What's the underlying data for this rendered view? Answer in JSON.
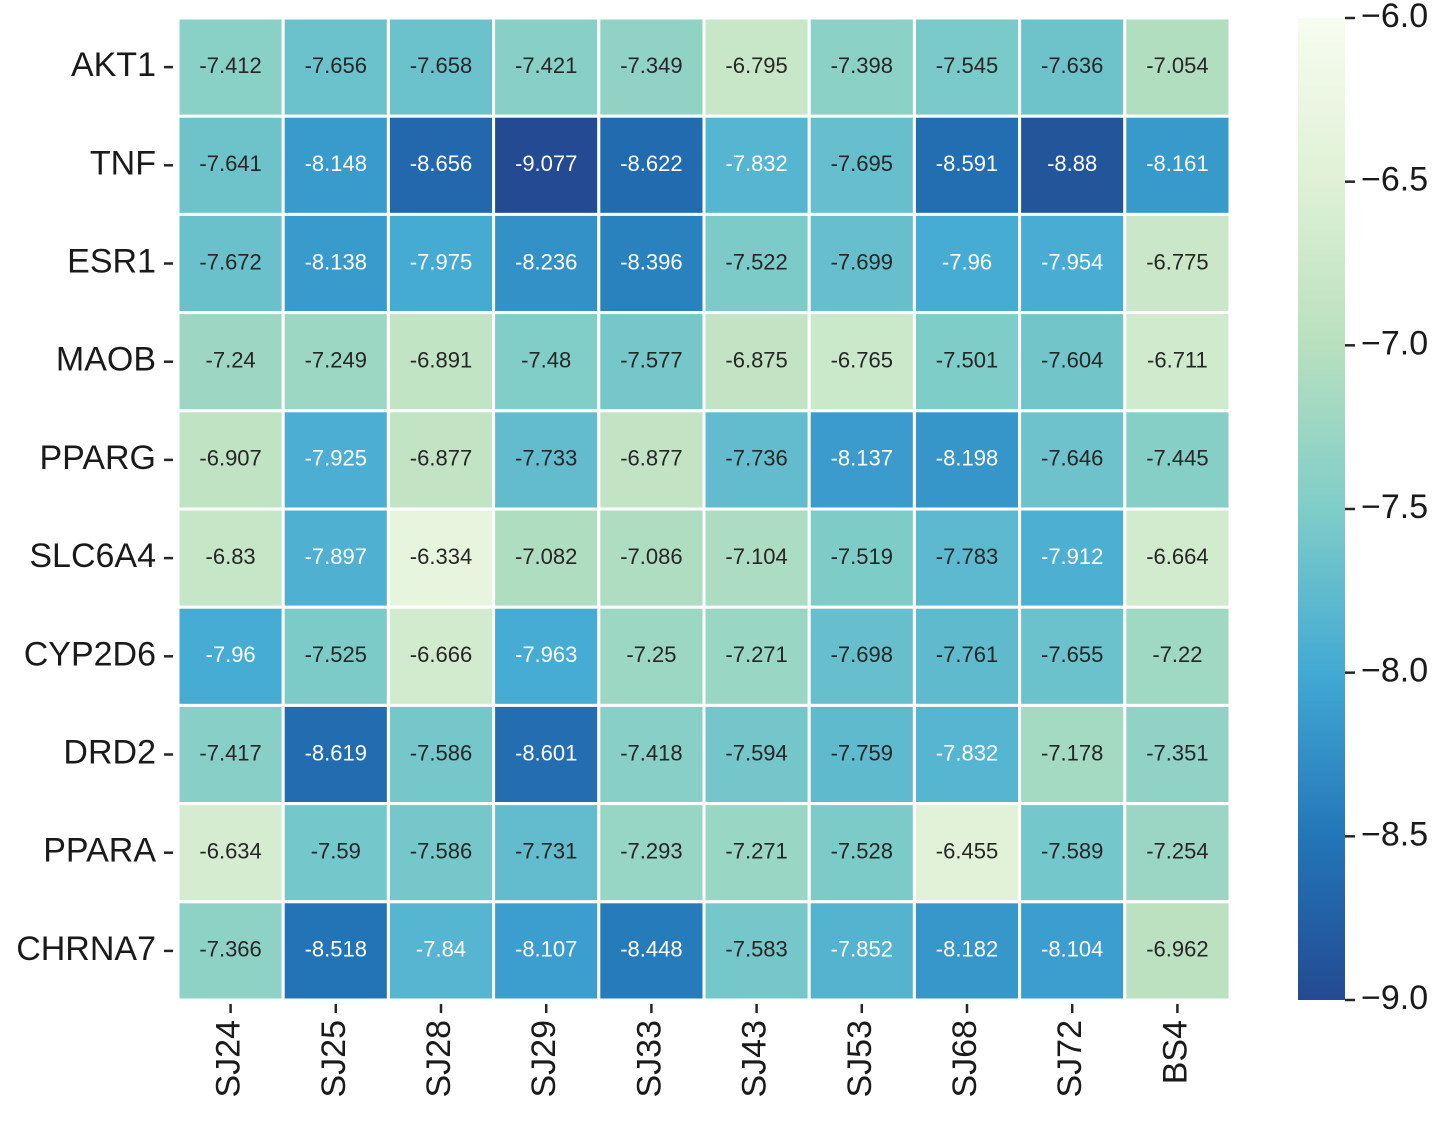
{
  "chart_data": {
    "type": "heatmap",
    "x": [
      "SJ24",
      "SJ25",
      "SJ28",
      "SJ29",
      "SJ33",
      "SJ43",
      "SJ53",
      "SJ68",
      "SJ72",
      "BS4"
    ],
    "y": [
      "AKT1",
      "TNF",
      "ESR1",
      "MAOB",
      "PPARG",
      "SLC6A4",
      "CYP2D6",
      "DRD2",
      "PPARA",
      "CHRNA7"
    ],
    "values": [
      [
        -7.412,
        -7.656,
        -7.658,
        -7.421,
        -7.349,
        -6.795,
        -7.398,
        -7.545,
        -7.636,
        -7.054
      ],
      [
        -7.641,
        -8.148,
        -8.656,
        -9.077,
        -8.622,
        -7.832,
        -7.695,
        -8.591,
        -8.88,
        -8.161
      ],
      [
        -7.672,
        -8.138,
        -7.975,
        -8.236,
        -8.396,
        -7.522,
        -7.699,
        -7.96,
        -7.954,
        -6.775
      ],
      [
        -7.24,
        -7.249,
        -6.891,
        -7.48,
        -7.577,
        -6.875,
        -6.765,
        -7.501,
        -7.604,
        -6.711
      ],
      [
        -6.907,
        -7.925,
        -6.877,
        -7.733,
        -6.877,
        -7.736,
        -8.137,
        -8.198,
        -7.646,
        -7.445
      ],
      [
        -6.83,
        -7.897,
        -6.334,
        -7.082,
        -7.086,
        -7.104,
        -7.519,
        -7.783,
        -7.912,
        -6.664
      ],
      [
        -7.96,
        -7.525,
        -6.666,
        -7.963,
        -7.25,
        -7.271,
        -7.698,
        -7.761,
        -7.655,
        -7.22
      ],
      [
        -7.417,
        -8.619,
        -7.586,
        -8.601,
        -7.418,
        -7.594,
        -7.759,
        -7.832,
        -7.178,
        -7.351
      ],
      [
        -6.634,
        -7.59,
        -7.586,
        -7.731,
        -7.293,
        -7.271,
        -7.528,
        -6.455,
        -7.589,
        -7.254
      ],
      [
        -7.366,
        -8.518,
        -7.84,
        -8.107,
        -8.448,
        -7.583,
        -7.852,
        -8.182,
        -8.104,
        -6.962
      ]
    ],
    "colorbar": {
      "lim": [
        -9,
        -6
      ],
      "ticks": [
        {
          "value": -6,
          "label": "−6.0"
        },
        {
          "value": -6.5,
          "label": "−6.5"
        },
        {
          "value": -7,
          "label": "−7.0"
        },
        {
          "value": -7.5,
          "label": "−7.5"
        },
        {
          "value": -8,
          "label": "−8.0"
        },
        {
          "value": -8.5,
          "label": "−8.5"
        },
        {
          "value": -9,
          "label": "−9.0"
        }
      ],
      "colormap": [
        "#234a92",
        "#2376b8",
        "#42a9d4",
        "#7fcdc8",
        "#b8e0bf",
        "#dff1d6",
        "#f7fcf0"
      ]
    }
  }
}
